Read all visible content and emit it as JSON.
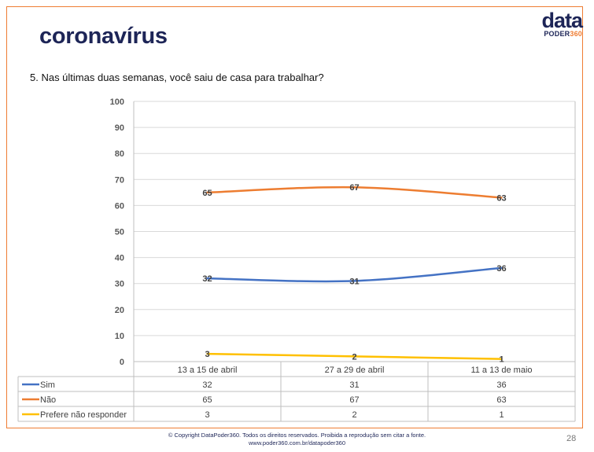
{
  "header": {
    "title": "coronavírus",
    "logo_word": "data",
    "logo_sub_text": "PODER",
    "logo_sub_num": "360",
    "question": "5. Nas últimas duas semanas, você saiu de casa para trabalhar?"
  },
  "footer": {
    "copyright": "© Copyright DataPoder360. Todos os direitos reservados. Proibida a reprodução sem citar a fonte.",
    "url": "www.poder360.com.br/datapoder360",
    "page_number": "28"
  },
  "colors": {
    "accent": "#ef7d33",
    "title": "#1d2557"
  },
  "chart_data": {
    "type": "line",
    "categories": [
      "13 a 15 de abril",
      "27 a 29 de abril",
      "11 a 13 de maio"
    ],
    "ylim": [
      0,
      100
    ],
    "yticks": [
      0,
      10,
      20,
      30,
      40,
      50,
      60,
      70,
      80,
      90,
      100
    ],
    "grid": true,
    "legend": "data-table",
    "series": [
      {
        "name": "Sim",
        "values": [
          32,
          31,
          36
        ],
        "color": "#4472c4"
      },
      {
        "name": "Não",
        "values": [
          65,
          67,
          63
        ],
        "color": "#ed7d31"
      },
      {
        "name": "Prefere não responder",
        "values": [
          3,
          2,
          1
        ],
        "color": "#ffc000"
      }
    ]
  }
}
